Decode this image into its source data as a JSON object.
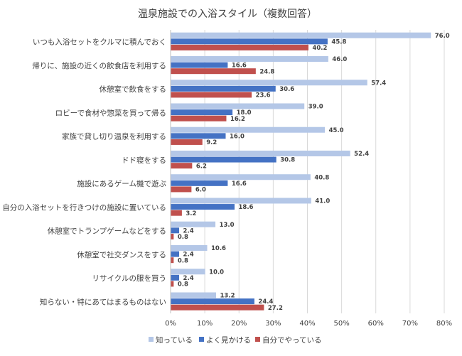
{
  "chart_data": {
    "type": "bar",
    "orientation": "horizontal",
    "title": "温泉施設での入浴スタイル（複数回答）",
    "categories": [
      "いつも入浴セットをクルマに積んでおく",
      "帰りに、施設の近くの飲食店を利用する",
      "休憩室で飲食をする",
      "ロビーで食材や惣菜を買って帰る",
      "家族で貸し切り温泉を利用する",
      "ドド寝をする",
      "施設にあるゲーム機で遊ぶ",
      "自分の入浴セットを行きつけの施設に置いている",
      "休憩室でトランプゲームなどをする",
      "休憩室で社交ダンスをする",
      "リサイクルの服を買う",
      "知らない・特にあてはまるものはない"
    ],
    "series": [
      {
        "name": "知っている",
        "color": "#b4c7e7",
        "values": [
          76.0,
          46.0,
          57.4,
          39.0,
          45.0,
          52.4,
          40.8,
          41.0,
          13.0,
          10.6,
          10.0,
          13.2
        ]
      },
      {
        "name": "よく見かける",
        "color": "#4472c4",
        "values": [
          45.8,
          16.6,
          30.6,
          18.0,
          16.0,
          30.8,
          16.6,
          18.6,
          2.4,
          2.4,
          2.4,
          24.4
        ]
      },
      {
        "name": "自分でやっている",
        "color": "#c0504d",
        "values": [
          40.2,
          24.8,
          23.6,
          16.2,
          9.2,
          6.2,
          6.0,
          3.2,
          0.8,
          0.8,
          0.8,
          27.2
        ]
      }
    ],
    "xlim": [
      0,
      80
    ],
    "xticks": [
      "0%",
      "10%",
      "20%",
      "30%",
      "40%",
      "50%",
      "60%",
      "70%",
      "80%"
    ],
    "grid": true,
    "legend_position": "bottom"
  }
}
